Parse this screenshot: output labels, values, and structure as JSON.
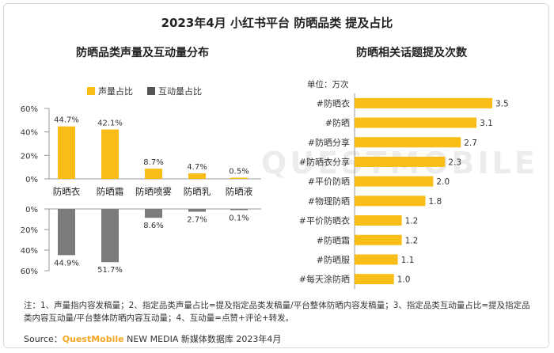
{
  "title": "2023年4月 小红书平台 防晒品类 提及占比",
  "watermark": "QUESTMOBILE",
  "notes": "注：1、声量指内容发稿量；2、指定品类声量占比=提及指定品类发稿量/平台整体防晒内容发稿量；3、指定品类互动量占比=提及指定品类内容互动量/平台整体防晒内容互动量；4、互动量=点赞+评论+转发。",
  "source": {
    "prefix": "Source：",
    "brand": "QuestMobile",
    "suffix": " NEW MEDIA 新媒体数据库 2023年4月"
  },
  "colors": {
    "gold": "#f8bd16",
    "gray": "#7b7b7b"
  },
  "chart_data": [
    {
      "type": "bar",
      "title": "防晒品类声量及互动量分布",
      "categories": [
        "防晒衣",
        "防晒霜",
        "防晒喷雾",
        "防晒乳",
        "防晒液"
      ],
      "series": [
        {
          "name": "声量占比",
          "values": [
            44.7,
            42.1,
            8.7,
            4.7,
            0.5
          ],
          "labels": [
            "44.7%",
            "42.1%",
            "8.7%",
            "4.7%",
            "0.5%"
          ]
        },
        {
          "name": "互动量占比",
          "values": [
            44.9,
            51.7,
            8.6,
            2.7,
            0.1
          ],
          "labels": [
            "44.9%",
            "51.7%",
            "8.6%",
            "2.7%",
            "0.1%"
          ]
        }
      ],
      "ylim": [
        0,
        60
      ],
      "yticks_top": [
        "60%",
        "40%",
        "20%",
        "0%"
      ],
      "yticks_bottom": [
        "0%",
        "20%",
        "40%",
        "60%"
      ],
      "legend": "top"
    },
    {
      "type": "bar",
      "orientation": "horizontal",
      "title": "防晒相关话题提及次数",
      "unit": "单位：万次",
      "categories": [
        "#防晒衣",
        "#防晒",
        "#防晒分享",
        "#防晒衣分享",
        "#平价防晒",
        "#物理防晒",
        "#平价防晒衣",
        "#防晒霜",
        "#防晒服",
        "#每天涂防晒"
      ],
      "values": [
        3.5,
        3.1,
        2.7,
        2.3,
        2.0,
        1.8,
        1.2,
        1.2,
        1.1,
        1.0
      ],
      "labels": [
        "3.5",
        "3.1",
        "2.7",
        "2.3",
        "2.0",
        "1.8",
        "1.2",
        "1.2",
        "1.1",
        "1.0"
      ]
    }
  ]
}
